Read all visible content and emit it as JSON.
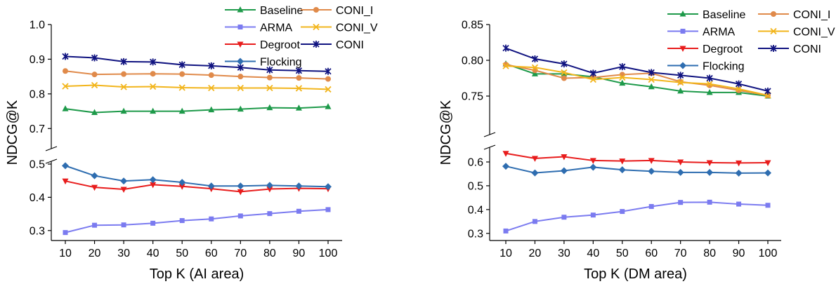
{
  "chart_data": [
    {
      "type": "line",
      "xlabel": "Top K (AI area)",
      "ylabel": "NDCG@K",
      "x": [
        10,
        20,
        30,
        40,
        50,
        60,
        70,
        80,
        90,
        100
      ],
      "xticks": [
        "10",
        "20",
        "30",
        "40",
        "50",
        "60",
        "70",
        "80",
        "90",
        "100"
      ],
      "y_axis_break": true,
      "y_upper": {
        "range": [
          0.65,
          1.0
        ],
        "ticks": [
          "0.7",
          "0.8",
          "0.9",
          "1.0"
        ],
        "tick_values": [
          0.7,
          0.8,
          0.9,
          1.0
        ]
      },
      "y_lower": {
        "range": [
          0.27,
          0.5
        ],
        "ticks": [
          "0.3",
          "0.4",
          "0.5"
        ],
        "tick_values": [
          0.3,
          0.4,
          0.5
        ]
      },
      "grid": false,
      "legend_position": "top-right",
      "series": [
        {
          "name": "Baseline",
          "color": "#1e9a4a",
          "marker": "triangle",
          "segment": "upper",
          "values": [
            0.757,
            0.746,
            0.75,
            0.75,
            0.75,
            0.754,
            0.756,
            0.76,
            0.759,
            0.763
          ]
        },
        {
          "name": "ARMA",
          "color": "#7b7bf0",
          "marker": "square",
          "segment": "lower",
          "values": [
            0.294,
            0.316,
            0.317,
            0.322,
            0.33,
            0.335,
            0.344,
            0.351,
            0.358,
            0.363
          ]
        },
        {
          "name": "Degroot",
          "color": "#e81c1c",
          "marker": "triangle-down",
          "segment": "lower",
          "values": [
            0.449,
            0.43,
            0.424,
            0.438,
            0.433,
            0.426,
            0.417,
            0.425,
            0.427,
            0.426
          ]
        },
        {
          "name": "Flocking",
          "color": "#2e6db0",
          "marker": "diamond",
          "segment": "lower",
          "values": [
            0.495,
            0.465,
            0.449,
            0.453,
            0.445,
            0.434,
            0.434,
            0.436,
            0.434,
            0.432
          ]
        },
        {
          "name": "CONI_I",
          "color": "#e08a4a",
          "marker": "circle",
          "segment": "upper",
          "values": [
            0.866,
            0.856,
            0.857,
            0.858,
            0.857,
            0.854,
            0.85,
            0.847,
            0.846,
            0.843
          ]
        },
        {
          "name": "CONI_V",
          "color": "#f2b51c",
          "marker": "x",
          "segment": "upper",
          "values": [
            0.822,
            0.825,
            0.82,
            0.821,
            0.818,
            0.817,
            0.817,
            0.817,
            0.816,
            0.813
          ]
        },
        {
          "name": "CONI",
          "color": "#101380",
          "marker": "asterisk",
          "segment": "upper",
          "values": [
            0.908,
            0.904,
            0.893,
            0.892,
            0.884,
            0.881,
            0.876,
            0.869,
            0.867,
            0.865
          ]
        }
      ]
    },
    {
      "type": "line",
      "xlabel": "Top K (DM area)",
      "ylabel": "NDCG@K",
      "x": [
        10,
        20,
        30,
        40,
        50,
        60,
        70,
        80,
        90,
        100
      ],
      "xticks": [
        "10",
        "20",
        "30",
        "40",
        "50",
        "60",
        "70",
        "80",
        "90",
        "100"
      ],
      "y_axis_break": true,
      "y_upper": {
        "range": [
          0.7,
          0.85
        ],
        "ticks": [
          "0.75",
          "0.80",
          "0.85"
        ],
        "tick_values": [
          0.75,
          0.8,
          0.85
        ]
      },
      "y_lower": {
        "range": [
          0.27,
          0.65
        ],
        "ticks": [
          "0.3",
          "0.4",
          "0.5",
          "0.6"
        ],
        "tick_values": [
          0.3,
          0.4,
          0.5,
          0.6
        ]
      },
      "grid": false,
      "legend_position": "top-right",
      "series": [
        {
          "name": "Baseline",
          "color": "#1e9a4a",
          "marker": "triangle",
          "segment": "upper",
          "values": [
            0.795,
            0.781,
            0.781,
            0.777,
            0.768,
            0.763,
            0.757,
            0.755,
            0.755,
            0.75
          ]
        },
        {
          "name": "ARMA",
          "color": "#7b7bf0",
          "marker": "square",
          "segment": "lower",
          "values": [
            0.31,
            0.35,
            0.368,
            0.377,
            0.392,
            0.413,
            0.43,
            0.431,
            0.423,
            0.418
          ]
        },
        {
          "name": "Degroot",
          "color": "#e81c1c",
          "marker": "triangle-down",
          "segment": "lower",
          "values": [
            0.636,
            0.615,
            0.622,
            0.606,
            0.604,
            0.606,
            0.6,
            0.597,
            0.596,
            0.597
          ]
        },
        {
          "name": "Flocking",
          "color": "#2e6db0",
          "marker": "diamond",
          "segment": "lower",
          "values": [
            0.582,
            0.554,
            0.563,
            0.578,
            0.567,
            0.561,
            0.556,
            0.556,
            0.553,
            0.554
          ]
        },
        {
          "name": "CONI_I",
          "color": "#e08a4a",
          "marker": "circle",
          "segment": "upper",
          "values": [
            0.794,
            0.786,
            0.775,
            0.776,
            0.78,
            0.782,
            0.77,
            0.765,
            0.758,
            0.751
          ]
        },
        {
          "name": "CONI_V",
          "color": "#f2b51c",
          "marker": "x",
          "segment": "upper",
          "values": [
            0.792,
            0.79,
            0.783,
            0.773,
            0.776,
            0.773,
            0.769,
            0.767,
            0.76,
            0.751
          ]
        },
        {
          "name": "CONI",
          "color": "#101380",
          "marker": "asterisk",
          "segment": "upper",
          "values": [
            0.817,
            0.802,
            0.795,
            0.782,
            0.791,
            0.783,
            0.779,
            0.775,
            0.767,
            0.757
          ]
        }
      ]
    }
  ]
}
